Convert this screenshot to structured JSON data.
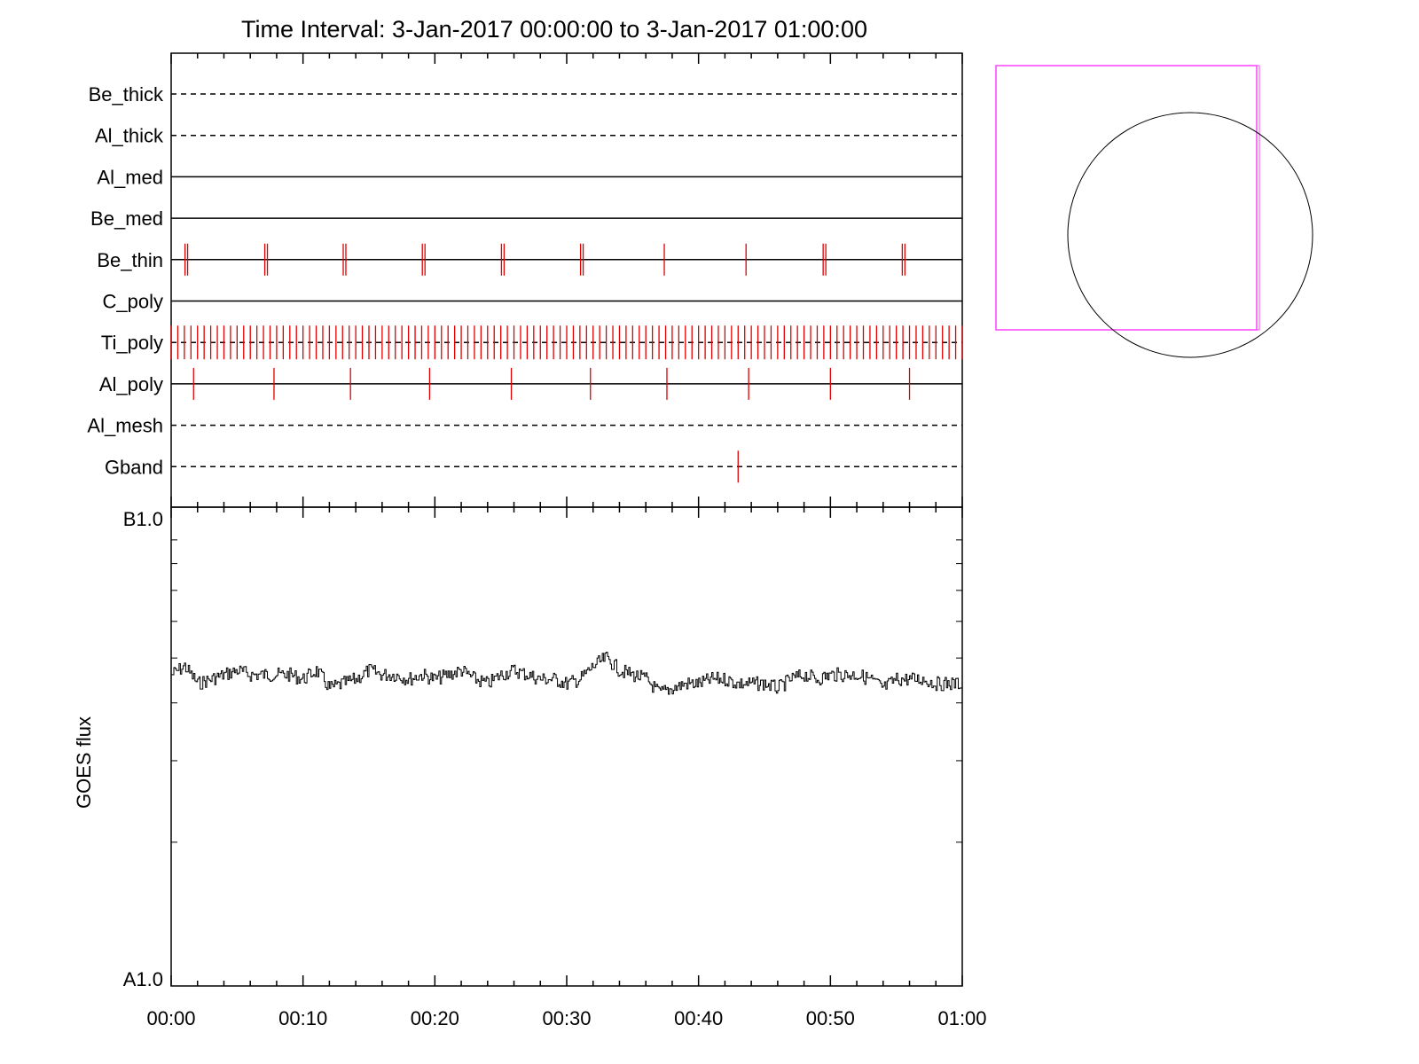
{
  "title": "Time Interval:  3-Jan-2017 00:00:00 to  3-Jan-2017 01:00:00",
  "colors": {
    "axis": "#000000",
    "marker": "#e00000",
    "fov_box": "#ff40ff",
    "sun_disk": "#000000"
  },
  "chart_data": [
    {
      "type": "timeline",
      "description_source": "filter/event timeline rows",
      "x_unit": "minutes",
      "x_range": [
        0,
        60
      ],
      "rows": [
        {
          "label": "Be_thick",
          "style": "dashed",
          "events": []
        },
        {
          "label": "Al_thick",
          "style": "dashed",
          "events": []
        },
        {
          "label": "Al_med",
          "style": "solid",
          "events": []
        },
        {
          "label": "Be_med",
          "style": "solid",
          "events": []
        },
        {
          "label": "Be_thin",
          "style": "solid",
          "events": [
            1.05,
            1.25,
            7.1,
            7.3,
            13.05,
            13.25,
            19.05,
            19.25,
            25.05,
            25.25,
            31.05,
            31.25,
            37.4,
            43.6,
            49.45,
            49.65,
            55.45,
            55.65
          ]
        },
        {
          "label": "C_poly",
          "style": "solid",
          "events": []
        },
        {
          "label": "Ti_poly",
          "style": "dashed",
          "events": "dense",
          "event_spacing": 0.5
        },
        {
          "label": "Al_poly",
          "style": "solid",
          "events": [
            1.7,
            7.8,
            13.6,
            19.6,
            25.8,
            31.8,
            37.6,
            43.8,
            50.0,
            56.0
          ]
        },
        {
          "label": "Al_mesh",
          "style": "dashed",
          "events": []
        },
        {
          "label": "Gband",
          "style": "dashed",
          "events": [
            43.0
          ]
        }
      ]
    },
    {
      "type": "line",
      "ylabel": "GOES flux",
      "y_scale": "log",
      "y_range": [
        1e-08,
        1e-07
      ],
      "y_tick_labels": [
        "A1.0",
        "B1.0"
      ],
      "x_unit": "minutes",
      "x_range": [
        0,
        60
      ],
      "x_tick_labels": [
        "00:00",
        "00:10",
        "00:20",
        "00:30",
        "00:40",
        "00:50",
        "01:00"
      ],
      "x_ticks": [
        0,
        10,
        20,
        30,
        40,
        50,
        60
      ],
      "series": [
        {
          "values": [
            [
              0,
              4.6e-08
            ],
            [
              1,
              4.8e-08
            ],
            [
              2,
              4.4e-08
            ],
            [
              3,
              4.5e-08
            ],
            [
              4,
              4.6e-08
            ],
            [
              5,
              4.7e-08
            ],
            [
              6,
              4.6e-08
            ],
            [
              7,
              4.6e-08
            ],
            [
              8,
              4.6e-08
            ],
            [
              9,
              4.6e-08
            ],
            [
              10,
              4.5e-08
            ],
            [
              11,
              4.7e-08
            ],
            [
              12,
              4.3e-08
            ],
            [
              13,
              4.4e-08
            ],
            [
              14,
              4.5e-08
            ],
            [
              15,
              4.7e-08
            ],
            [
              16,
              4.6e-08
            ],
            [
              17,
              4.6e-08
            ],
            [
              18,
              4.5e-08
            ],
            [
              19,
              4.6e-08
            ],
            [
              20,
              4.5e-08
            ],
            [
              21,
              4.6e-08
            ],
            [
              22,
              4.7e-08
            ],
            [
              23,
              4.5e-08
            ],
            [
              24,
              4.4e-08
            ],
            [
              25,
              4.6e-08
            ],
            [
              26,
              4.7e-08
            ],
            [
              27,
              4.6e-08
            ],
            [
              28,
              4.5e-08
            ],
            [
              29,
              4.5e-08
            ],
            [
              30,
              4.4e-08
            ],
            [
              31,
              4.5e-08
            ],
            [
              32,
              4.8e-08
            ],
            [
              33,
              5e-08
            ],
            [
              34,
              4.7e-08
            ],
            [
              35,
              4.6e-08
            ],
            [
              36,
              4.5e-08
            ],
            [
              37,
              4.2e-08
            ],
            [
              38,
              4.3e-08
            ],
            [
              39,
              4.4e-08
            ],
            [
              40,
              4.4e-08
            ],
            [
              41,
              4.5e-08
            ],
            [
              42,
              4.5e-08
            ],
            [
              43,
              4.4e-08
            ],
            [
              44,
              4.4e-08
            ],
            [
              45,
              4.4e-08
            ],
            [
              46,
              4.3e-08
            ],
            [
              47,
              4.5e-08
            ],
            [
              48,
              4.6e-08
            ],
            [
              49,
              4.5e-08
            ],
            [
              50,
              4.6e-08
            ],
            [
              51,
              4.6e-08
            ],
            [
              52,
              4.6e-08
            ],
            [
              53,
              4.5e-08
            ],
            [
              54,
              4.3e-08
            ],
            [
              55,
              4.5e-08
            ],
            [
              56,
              4.5e-08
            ],
            [
              57,
              4.5e-08
            ],
            [
              58,
              4.4e-08
            ],
            [
              59,
              4.4e-08
            ],
            [
              60,
              4.4e-08
            ]
          ]
        }
      ]
    }
  ]
}
